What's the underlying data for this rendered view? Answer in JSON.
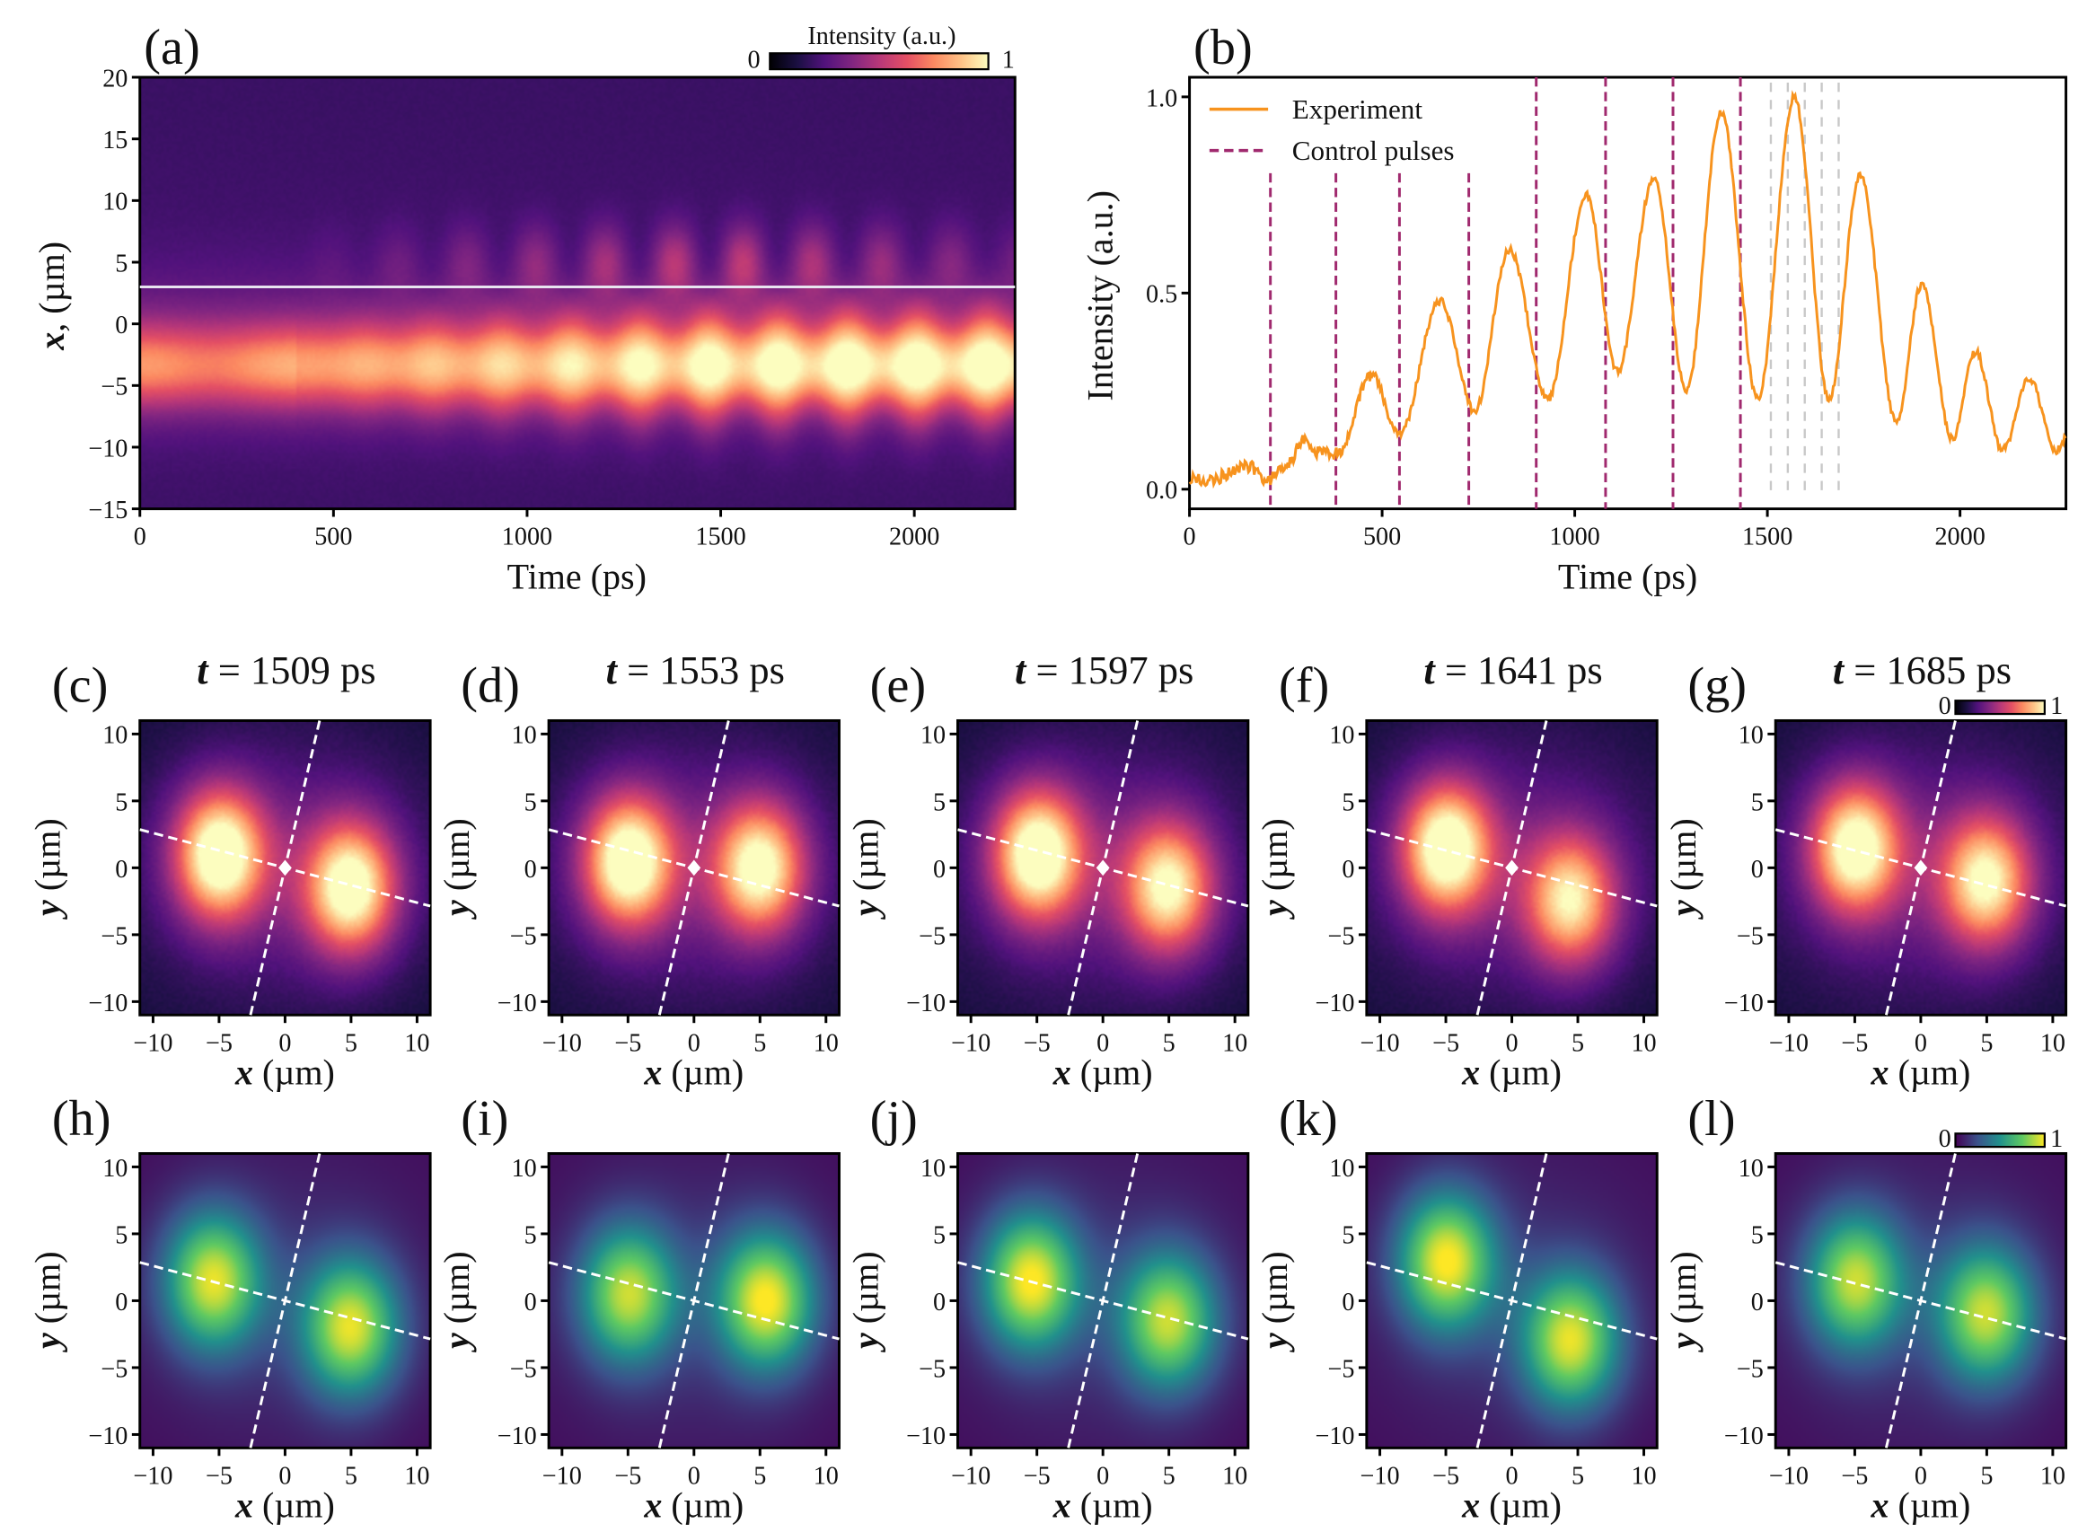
{
  "colors": {
    "experiment": "#f7931e",
    "control": "#a0296e",
    "gray_lines": "#c8c8c8",
    "white_line": "#e8e4f0"
  },
  "chart_data": [
    {
      "id": "a",
      "type": "heatmap",
      "label": "(a)",
      "xlabel": "Time (ps)",
      "ylabel_var": "x",
      "ylabel_rest": ", (µm)",
      "xlim": [
        0,
        2260
      ],
      "ylim": [
        -15,
        20
      ],
      "xticks": [
        0,
        500,
        1000,
        1500,
        2000
      ],
      "yticks": [
        20,
        15,
        10,
        5,
        0,
        -5,
        -10,
        -15
      ],
      "xtick_labels": [
        "0",
        "500",
        "1000",
        "1500",
        "2000"
      ],
      "ytick_labels": [
        "20",
        "15",
        "10",
        "5",
        "0",
        "−5",
        "−10",
        "−15"
      ],
      "colormap": "magma",
      "colorbar": {
        "title": "Intensity (a.u.)",
        "min_label": "0",
        "max_label": "1"
      },
      "cut_line_x": 3,
      "lower_band_center": -3.5,
      "upper_band_center": 5,
      "oscillation_period_ps": 180
    },
    {
      "id": "b",
      "type": "line",
      "label": "(b)",
      "xlabel": "Time (ps)",
      "ylabel": "Intensity (a.u.)",
      "xlim": [
        0,
        2275
      ],
      "ylim": [
        -0.05,
        1.05
      ],
      "xticks": [
        0,
        500,
        1000,
        1500,
        2000
      ],
      "yticks": [
        0.0,
        0.5,
        1.0
      ],
      "xtick_labels": [
        "0",
        "500",
        "1000",
        "1500",
        "2000"
      ],
      "ytick_labels": [
        "0.0",
        "0.5",
        "1.0"
      ],
      "legend": {
        "position": "top-left",
        "entries": [
          "Experiment",
          "Control pulses"
        ]
      },
      "series": [
        {
          "name": "Experiment",
          "points": [
            [
              0,
              0.03
            ],
            [
              60,
              0.02
            ],
            [
              100,
              0.04
            ],
            [
              150,
              0.06
            ],
            [
              200,
              0.02
            ],
            [
              250,
              0.06
            ],
            [
              300,
              0.13
            ],
            [
              340,
              0.09
            ],
            [
              385,
              0.09
            ],
            [
              470,
              0.29
            ],
            [
              545,
              0.14
            ],
            [
              650,
              0.48
            ],
            [
              740,
              0.2
            ],
            [
              830,
              0.61
            ],
            [
              930,
              0.23
            ],
            [
              1030,
              0.75
            ],
            [
              1110,
              0.3
            ],
            [
              1205,
              0.79
            ],
            [
              1290,
              0.25
            ],
            [
              1380,
              0.96
            ],
            [
              1475,
              0.23
            ],
            [
              1570,
              1.0
            ],
            [
              1660,
              0.23
            ],
            [
              1740,
              0.8
            ],
            [
              1835,
              0.17
            ],
            [
              1900,
              0.52
            ],
            [
              1980,
              0.13
            ],
            [
              2040,
              0.35
            ],
            [
              2110,
              0.1
            ],
            [
              2180,
              0.28
            ],
            [
              2250,
              0.1
            ],
            [
              2275,
              0.13
            ]
          ]
        }
      ],
      "control_pulses": [
        210,
        380,
        545,
        725,
        900,
        1080,
        1255,
        1430
      ],
      "snapshot_times": [
        1509,
        1553,
        1597,
        1641,
        1685
      ]
    },
    {
      "id": "snapshots",
      "type": "heatmap",
      "xlabel_var": "x",
      "ylabel_var": "y",
      "unit": " (µm)",
      "xlim": [
        -11,
        11
      ],
      "ylim": [
        -11,
        11
      ],
      "ticks": [
        -10,
        -5,
        0,
        5,
        10
      ],
      "tick_labels": [
        "−10",
        "−5",
        "0",
        "5",
        "10"
      ],
      "colorbar_labels": {
        "min": "0",
        "max": "1"
      },
      "rows": [
        {
          "name": "experiment",
          "colormap": "magma",
          "panels": [
            {
              "label": "(c)",
              "t_var": "t",
              "t_rest": " = 1509 ps",
              "lobes": [
                [
                  -5,
                  1,
                  1.0
                ],
                [
                  5,
                  -1.5,
                  0.95
                ]
              ]
            },
            {
              "label": "(d)",
              "t_var": "t",
              "t_rest": " = 1553 ps",
              "lobes": [
                [
                  -5,
                  0.5,
                  1.0
                ],
                [
                  5,
                  0,
                  0.9
                ]
              ]
            },
            {
              "label": "(e)",
              "t_var": "t",
              "t_rest": " = 1597 ps",
              "lobes": [
                [
                  -5,
                  1,
                  1.0
                ],
                [
                  5,
                  -1.5,
                  0.85
                ]
              ]
            },
            {
              "label": "(f)",
              "t_var": "t",
              "t_rest": " = 1641 ps",
              "lobes": [
                [
                  -5,
                  1.5,
                  1.0
                ],
                [
                  4.5,
                  -2.5,
                  0.8
                ]
              ]
            },
            {
              "label": "(g)",
              "t_var": "t",
              "t_rest": " = 1685 ps",
              "lobes": [
                [
                  -5,
                  1.5,
                  0.95
                ],
                [
                  5,
                  -1,
                  0.85
                ]
              ]
            }
          ]
        },
        {
          "name": "simulation",
          "colormap": "viridis",
          "panels": [
            {
              "label": "(h)",
              "lobes": [
                [
                  -5.5,
                  1.5,
                  0.9
                ],
                [
                  5,
                  -2,
                  0.9
                ]
              ]
            },
            {
              "label": "(i)",
              "lobes": [
                [
                  -5,
                  0.5,
                  0.85
                ],
                [
                  5.5,
                  0,
                  0.95
                ]
              ]
            },
            {
              "label": "(j)",
              "lobes": [
                [
                  -5.5,
                  1.5,
                  0.95
                ],
                [
                  5,
                  -1.5,
                  0.85
                ]
              ]
            },
            {
              "label": "(k)",
              "lobes": [
                [
                  -5,
                  3,
                  0.95
                ],
                [
                  4.5,
                  -3,
                  0.9
                ]
              ]
            },
            {
              "label": "(l)",
              "lobes": [
                [
                  -5,
                  1.5,
                  0.85
                ],
                [
                  5,
                  -1,
                  0.85
                ]
              ]
            }
          ]
        }
      ],
      "dashed_axes_slopes": [
        -0.26,
        4.2
      ]
    }
  ]
}
